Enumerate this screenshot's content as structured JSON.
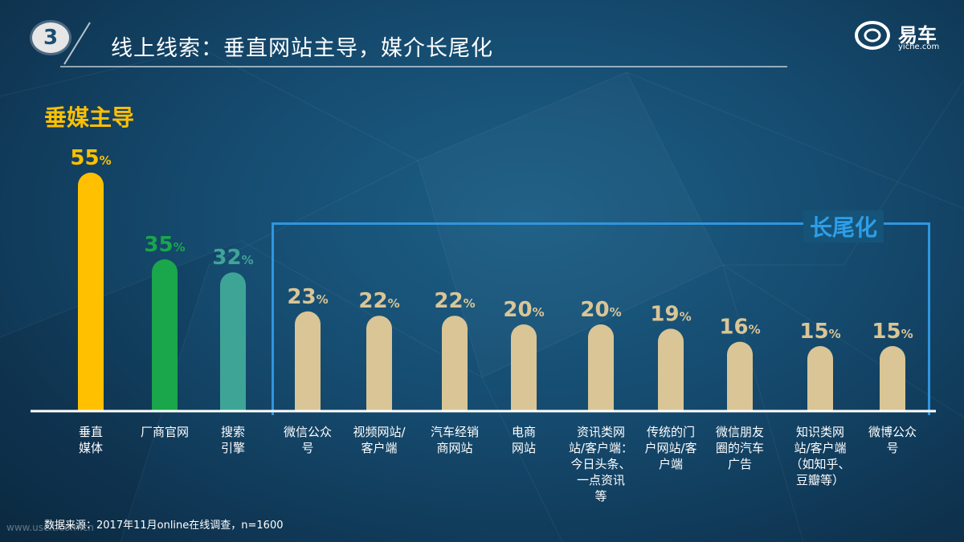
{
  "header": {
    "section_number": "3",
    "title": "线上线索：垂直网站主导，媒介长尾化",
    "logo_text": "易车",
    "logo_url": "yiche.com"
  },
  "annotations": {
    "head_label": "垂媒主导",
    "tail_label": "长尾化"
  },
  "colors": {
    "vertical": "#ffc000",
    "official": "#1aa64a",
    "search": "#3ea596",
    "tail": "#d9c596",
    "tail_bracket": "#2f96e0"
  },
  "chart_data": {
    "type": "bar",
    "unit": "%",
    "categories": [
      "垂直\n媒体",
      "厂商官网",
      "搜索\n引擎",
      "微信公众\n号",
      "视频网站/\n客户端",
      "汽车经销\n商网站",
      "电商\n网站",
      "资讯类网\n站/客户端：\n今日头条、\n一点资讯\n等",
      "传统的门\n户网站/客\n户端",
      "微信朋友\n圈的汽车\n广告",
      "知识类网\n站/客户端\n（如知乎、\n豆瓣等）",
      "微博公众\n号"
    ],
    "values": [
      55,
      35,
      32,
      23,
      22,
      22,
      20,
      20,
      19,
      16,
      15,
      15
    ],
    "ylim": [
      0,
      60
    ]
  },
  "footnote": "数据来源：2017年11月online在线调查，n=1600",
  "watermark": "www.useit.com.cn"
}
